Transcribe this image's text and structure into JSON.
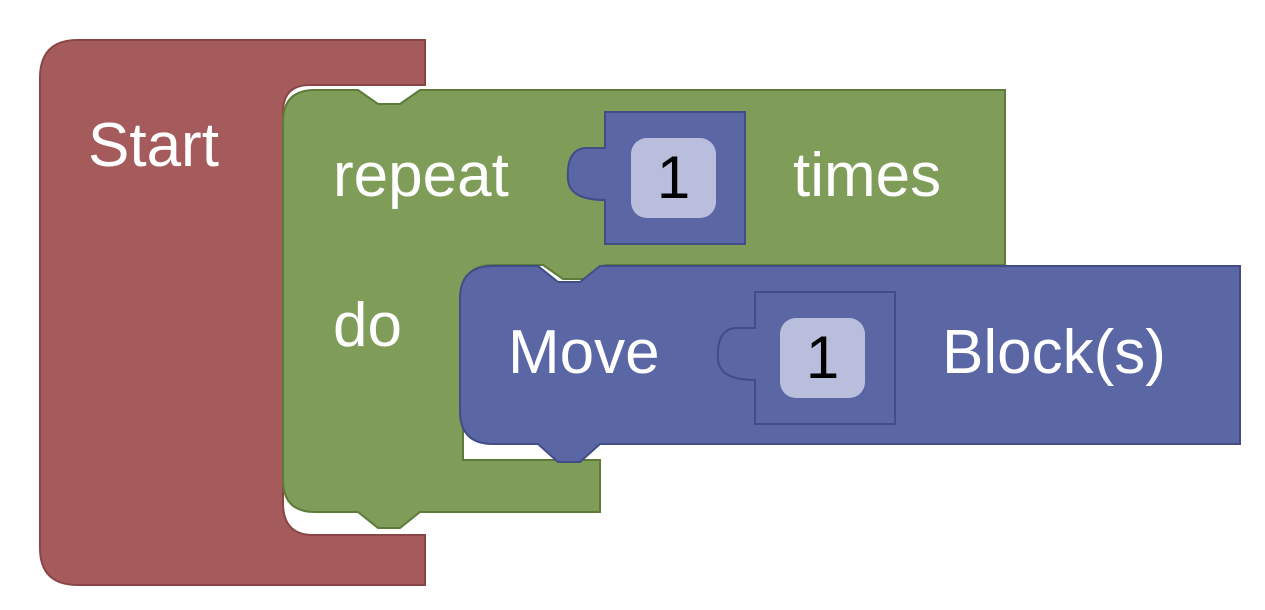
{
  "start_block": {
    "label": "Start",
    "color": "#a55b5b"
  },
  "repeat_block": {
    "label_prefix": "repeat",
    "label_suffix": "times",
    "do_label": "do",
    "count": "1",
    "color": "#7f9c58"
  },
  "move_block": {
    "label_prefix": "Move",
    "label_suffix": "Block(s)",
    "count": "1",
    "color": "#5b66a5"
  },
  "number_block": {
    "color": "#5b66a5",
    "field_color": "#b8bedc"
  }
}
